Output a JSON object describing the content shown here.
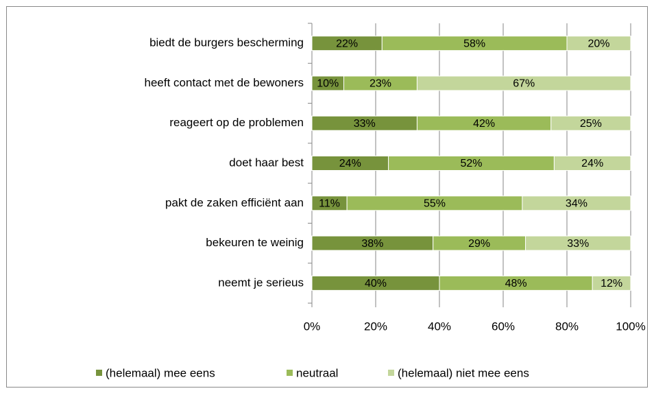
{
  "chart_data": {
    "type": "stacked_barh",
    "categories": [
      "biedt de burgers bescherming",
      "heeft contact met de bewoners",
      "reageert op de problemen",
      "doet haar best",
      "pakt de zaken efficiënt aan",
      "bekeuren te weinig",
      "neemt je serieus"
    ],
    "series": [
      {
        "name": "(helemaal) mee eens",
        "color": "#77933c",
        "values": [
          22,
          10,
          33,
          24,
          11,
          38,
          40
        ],
        "value_labels": [
          "22%",
          "10%",
          "33%",
          "24%",
          "11%",
          "38%",
          "40%"
        ]
      },
      {
        "name": "neutraal",
        "color": "#9bbb59",
        "values": [
          58,
          23,
          42,
          52,
          55,
          29,
          48
        ],
        "value_labels": [
          "58%",
          "23%",
          "42%",
          "52%",
          "55%",
          "29%",
          "48%"
        ]
      },
      {
        "name": "(helemaal) niet mee eens",
        "color": "#c3d69b",
        "values": [
          20,
          67,
          25,
          24,
          34,
          33,
          12
        ],
        "value_labels": [
          "20%",
          "67%",
          "25%",
          "24%",
          "34%",
          "33%",
          "12%"
        ]
      }
    ],
    "xlim": [
      0,
      100
    ],
    "xticks": [
      {
        "value": 0,
        "label": "0%"
      },
      {
        "value": 20,
        "label": "20%"
      },
      {
        "value": 40,
        "label": "40%"
      },
      {
        "value": 60,
        "label": "60%"
      },
      {
        "value": 80,
        "label": "80%"
      },
      {
        "value": 100,
        "label": "100%"
      }
    ],
    "grid": true,
    "legend": "bottom"
  }
}
